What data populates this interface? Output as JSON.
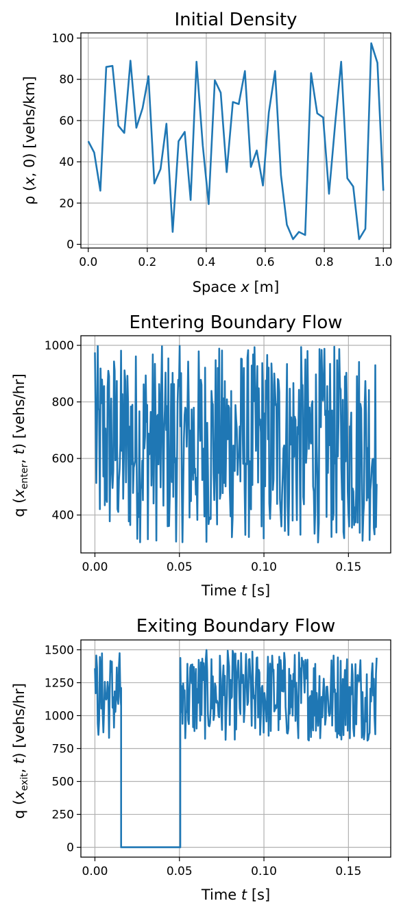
{
  "chart_data": [
    {
      "type": "line",
      "title": "Initial Density",
      "xlabel_prefix": "Space ",
      "xlabel_var": "x",
      "xlabel_suffix": " [m]",
      "ylabel_prefix": "ρ (",
      "ylabel_var": "x",
      "ylabel_mid": ", 0) [vehs/km]",
      "xlim": [
        -0.025,
        1.025
      ],
      "ylim": [
        -1.8,
        102.5
      ],
      "xticks": [
        0.0,
        0.2,
        0.4,
        0.6,
        0.8,
        1.0
      ],
      "xtick_labels": [
        "0.0",
        "0.2",
        "0.4",
        "0.6",
        "0.8",
        "1.0"
      ],
      "yticks": [
        0,
        20,
        40,
        60,
        80,
        100
      ],
      "ytick_labels": [
        "0",
        "20",
        "40",
        "60",
        "80",
        "100"
      ],
      "grid": true,
      "series": [
        {
          "x": [
            0.0,
            0.02,
            0.041,
            0.061,
            0.082,
            0.102,
            0.122,
            0.143,
            0.163,
            0.184,
            0.204,
            0.224,
            0.245,
            0.265,
            0.286,
            0.306,
            0.327,
            0.347,
            0.367,
            0.388,
            0.408,
            0.429,
            0.449,
            0.469,
            0.49,
            0.51,
            0.531,
            0.551,
            0.571,
            0.592,
            0.612,
            0.633,
            0.653,
            0.673,
            0.694,
            0.714,
            0.735,
            0.755,
            0.776,
            0.796,
            0.816,
            0.837,
            0.857,
            0.878,
            0.898,
            0.918,
            0.939,
            0.959,
            0.98,
            1.0
          ],
          "y": [
            50,
            44.5,
            26,
            86,
            86.5,
            57.5,
            54,
            89,
            56.5,
            66,
            81.5,
            29.5,
            36.5,
            58.5,
            6,
            50,
            54.5,
            21.5,
            88.5,
            48,
            19.5,
            79.5,
            73.5,
            35,
            69,
            68,
            84,
            37.5,
            45.5,
            28.5,
            64,
            84,
            33.5,
            9.5,
            2.5,
            6,
            4.5,
            83,
            63.5,
            61.5,
            24.5,
            59,
            88.5,
            32,
            28,
            2.5,
            7.5,
            97.5,
            88,
            26
          ]
        }
      ]
    },
    {
      "type": "line",
      "title": "Entering Boundary Flow",
      "xlabel_prefix": "Time ",
      "xlabel_var": "t",
      "xlabel_suffix": " [s]",
      "ylabel_prefix": "q (",
      "ylabel_var": "x",
      "ylabel_sub": "enter",
      "ylabel_mid": ", ",
      "ylabel_var2": "t",
      "ylabel_suffix": ") [vehs/hr]",
      "xlim": [
        -0.0083,
        0.175
      ],
      "ylim": [
        266,
        1034
      ],
      "xticks": [
        0.0,
        0.05,
        0.1,
        0.15
      ],
      "xtick_labels": [
        "0.00",
        "0.05",
        "0.10",
        "0.15"
      ],
      "yticks": [
        400,
        600,
        800,
        1000
      ],
      "ytick_labels": [
        "400",
        "600",
        "800",
        "1000"
      ],
      "grid": true,
      "series": [
        {
          "x_start": 0.0,
          "x_end": 0.1667,
          "samples": 400,
          "y_min": 300,
          "y_max": 1000,
          "y_first": 975,
          "y_last": 510
        }
      ]
    },
    {
      "type": "line",
      "title": "Exiting Boundary Flow",
      "xlabel_prefix": "Time ",
      "xlabel_var": "t",
      "xlabel_suffix": " [s]",
      "ylabel_prefix": "q (",
      "ylabel_var": "x",
      "ylabel_sub": "exit",
      "ylabel_mid": ", ",
      "ylabel_var2": "t",
      "ylabel_suffix": ") [vehs/hr]",
      "xlim": [
        -0.0083,
        0.175
      ],
      "ylim": [
        -75,
        1575
      ],
      "xticks": [
        0.0,
        0.05,
        0.1,
        0.15
      ],
      "xtick_labels": [
        "0.00",
        "0.05",
        "0.10",
        "0.15"
      ],
      "yticks": [
        0,
        250,
        500,
        750,
        1000,
        1250,
        1500
      ],
      "ytick_labels": [
        "0",
        "250",
        "500",
        "750",
        "1000",
        "1250",
        "1500"
      ],
      "grid": true,
      "series": [
        {
          "x_start": 0.0,
          "x_end": 0.1667,
          "samples": 400,
          "zero_from": 0.0155,
          "zero_to": 0.0505,
          "y_min": 810,
          "y_max": 1500,
          "y_first": 1360,
          "y_last": 1440
        }
      ]
    }
  ]
}
